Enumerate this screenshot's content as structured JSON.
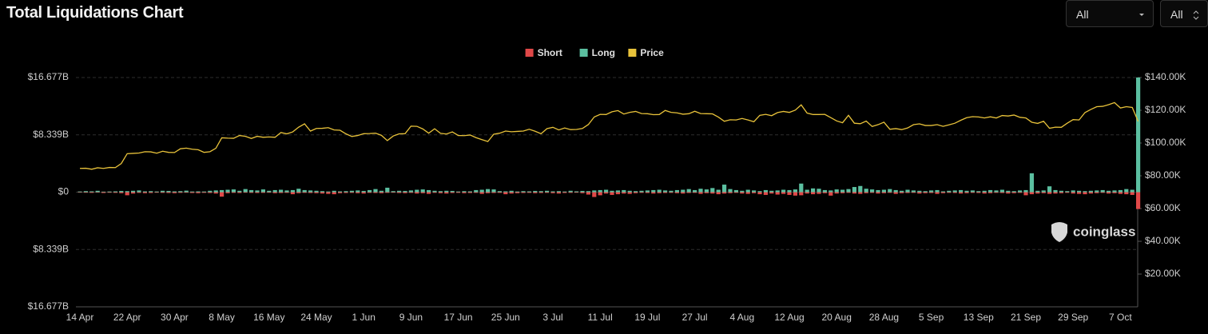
{
  "controls": [
    "All",
    "All"
  ],
  "watermark": "coinglass",
  "chart_data": {
    "type": "bar",
    "title": "Total Liquidations Chart",
    "categories": [
      "14 Apr",
      null,
      null,
      null,
      null,
      null,
      null,
      null,
      "22 Apr",
      null,
      null,
      null,
      null,
      null,
      null,
      null,
      "30 Apr",
      null,
      null,
      null,
      null,
      null,
      null,
      null,
      "8 May",
      null,
      null,
      null,
      null,
      null,
      null,
      null,
      "16 May",
      null,
      null,
      null,
      null,
      null,
      null,
      null,
      "24 May",
      null,
      null,
      null,
      null,
      null,
      null,
      null,
      "1 Jun",
      null,
      null,
      null,
      null,
      null,
      null,
      null,
      "9 Jun",
      null,
      null,
      null,
      null,
      null,
      null,
      null,
      "17 Jun",
      null,
      null,
      null,
      null,
      null,
      null,
      null,
      "25 Jun",
      null,
      null,
      null,
      null,
      null,
      null,
      null,
      "3 Jul",
      null,
      null,
      null,
      null,
      null,
      null,
      null,
      "11 Jul",
      null,
      null,
      null,
      null,
      null,
      null,
      null,
      "19 Jul",
      null,
      null,
      null,
      null,
      null,
      null,
      null,
      "27 Jul",
      null,
      null,
      null,
      null,
      null,
      null,
      null,
      "4 Aug",
      null,
      null,
      null,
      null,
      null,
      null,
      null,
      "12 Aug",
      null,
      null,
      null,
      null,
      null,
      null,
      null,
      "20 Aug",
      null,
      null,
      null,
      null,
      null,
      null,
      null,
      "28 Aug",
      null,
      null,
      null,
      null,
      null,
      null,
      null,
      "5 Sep",
      null,
      null,
      null,
      null,
      null,
      null,
      null,
      "13 Sep",
      null,
      null,
      null,
      null,
      null,
      null,
      null,
      "21 Sep",
      null,
      null,
      null,
      null,
      null,
      null,
      null,
      "29 Sep",
      null,
      null,
      null,
      null,
      null,
      null,
      null,
      "7 Oct",
      null,
      null,
      null
    ],
    "series": [
      {
        "name": "Short",
        "color": "#e04848",
        "values": [
          -0.05,
          -0.08,
          -0.1,
          -0.06,
          -0.12,
          -0.08,
          -0.1,
          -0.15,
          -0.45,
          -0.2,
          -0.1,
          -0.15,
          -0.12,
          -0.08,
          -0.1,
          -0.12,
          -0.15,
          -0.1,
          -0.08,
          -0.12,
          -0.15,
          -0.1,
          -0.12,
          -0.2,
          -0.65,
          -0.15,
          -0.1,
          -0.12,
          -0.08,
          -0.1,
          -0.12,
          -0.1,
          -0.08,
          -0.15,
          -0.12,
          -0.1,
          -0.3,
          -0.15,
          -0.1,
          -0.12,
          -0.15,
          -0.2,
          -0.25,
          -0.3,
          -0.15,
          -0.12,
          -0.1,
          -0.15,
          -0.2,
          -0.1,
          -0.12,
          -0.15,
          -0.1,
          -0.08,
          -0.12,
          -0.15,
          -0.1,
          -0.2,
          -0.15,
          -0.25,
          -0.1,
          -0.15,
          -0.2,
          -0.12,
          -0.1,
          -0.15,
          -0.12,
          -0.1,
          -0.25,
          -0.15,
          -0.12,
          -0.1,
          -0.3,
          -0.2,
          -0.15,
          -0.12,
          -0.1,
          -0.15,
          -0.12,
          -0.1,
          -0.15,
          -0.2,
          -0.12,
          -0.1,
          -0.08,
          -0.15,
          -0.35,
          -0.7,
          -0.45,
          -0.2,
          -0.4,
          -0.3,
          -0.2,
          -0.25,
          -0.15,
          -0.1,
          -0.12,
          -0.2,
          -0.15,
          -0.12,
          -0.1,
          -0.15,
          -0.2,
          -0.12,
          -0.1,
          -0.25,
          -0.15,
          -0.2,
          -0.3,
          -0.2,
          -0.15,
          -0.1,
          -0.2,
          -0.25,
          -0.15,
          -0.3,
          -0.4,
          -0.2,
          -0.35,
          -0.25,
          -0.4,
          -0.5,
          -0.45,
          -0.2,
          -0.3,
          -0.25,
          -0.15,
          -0.5,
          -0.2,
          -0.15,
          -0.1,
          -0.2,
          -0.25,
          -0.15,
          -0.1,
          -0.2,
          -0.15,
          -0.1,
          -0.25,
          -0.15,
          -0.12,
          -0.1,
          -0.2,
          -0.15,
          -0.12,
          -0.25,
          -0.15,
          -0.1,
          -0.12,
          -0.2,
          -0.15,
          -0.1,
          -0.12,
          -0.2,
          -0.15,
          -0.1,
          -0.12,
          -0.2,
          -0.15,
          -0.1,
          -0.45,
          -0.3,
          -0.2,
          -0.15,
          -0.25,
          -0.2,
          -0.15,
          -0.1,
          -0.2,
          -0.25,
          -0.3,
          -0.2,
          -0.15,
          -0.1,
          -0.2,
          -0.15,
          -0.25,
          -0.3,
          -0.4,
          -2.45
        ]
      },
      {
        "name": "Long",
        "color": "#5bbfa0",
        "values": [
          0.1,
          0.15,
          0.12,
          0.2,
          0.08,
          0.1,
          0.12,
          0.18,
          0.15,
          0.2,
          0.25,
          0.12,
          0.15,
          0.1,
          0.2,
          0.18,
          0.12,
          0.15,
          0.22,
          0.1,
          0.12,
          0.1,
          0.2,
          0.25,
          0.3,
          0.35,
          0.4,
          0.2,
          0.45,
          0.3,
          0.25,
          0.4,
          0.2,
          0.3,
          0.35,
          0.25,
          0.3,
          0.5,
          0.3,
          0.25,
          0.2,
          0.15,
          0.1,
          0.2,
          0.12,
          0.15,
          0.2,
          0.25,
          0.18,
          0.3,
          0.45,
          0.2,
          0.65,
          0.15,
          0.2,
          0.18,
          0.25,
          0.35,
          0.4,
          0.3,
          0.2,
          0.15,
          0.2,
          0.18,
          0.1,
          0.15,
          0.12,
          0.3,
          0.35,
          0.45,
          0.4,
          0.15,
          0.12,
          0.2,
          0.1,
          0.15,
          0.12,
          0.18,
          0.15,
          0.2,
          0.12,
          0.15,
          0.1,
          0.2,
          0.12,
          0.18,
          0.15,
          0.25,
          0.3,
          0.35,
          0.2,
          0.25,
          0.3,
          0.2,
          0.15,
          0.2,
          0.25,
          0.3,
          0.35,
          0.25,
          0.2,
          0.3,
          0.35,
          0.45,
          0.3,
          0.5,
          0.4,
          0.6,
          0.35,
          1.1,
          0.45,
          0.3,
          0.2,
          0.35,
          0.25,
          0.15,
          0.3,
          0.2,
          0.25,
          0.35,
          0.3,
          0.4,
          1.25,
          0.35,
          0.55,
          0.5,
          0.3,
          0.25,
          0.4,
          0.35,
          0.45,
          0.75,
          0.9,
          0.5,
          0.4,
          0.3,
          0.35,
          0.45,
          0.3,
          0.2,
          0.35,
          0.25,
          0.2,
          0.15,
          0.25,
          0.3,
          0.12,
          0.2,
          0.25,
          0.3,
          0.2,
          0.25,
          0.15,
          0.2,
          0.3,
          0.25,
          0.35,
          0.2,
          0.15,
          0.25,
          0.3,
          2.75,
          0.2,
          0.25,
          0.85,
          0.3,
          0.2,
          0.15,
          0.25,
          0.2,
          0.15,
          0.2,
          0.25,
          0.3,
          0.2,
          0.25,
          0.3,
          0.45,
          0.35,
          16.677
        ]
      },
      {
        "name": "Price",
        "color": "#e8c23a",
        "axis": "y2",
        "values": [
          84.5,
          84.6,
          84,
          84.9,
          84.5,
          85.1,
          85,
          87.5,
          93.5,
          93.7,
          93.9,
          94.7,
          94.6,
          93.8,
          95,
          94.3,
          94.2,
          96.5,
          96.9,
          96.2,
          95.9,
          94.3,
          94.7,
          96.8,
          103.2,
          103,
          102.9,
          104.6,
          104.1,
          102.8,
          104.1,
          103.5,
          103.7,
          103.5,
          106.4,
          105.6,
          106.8,
          109.7,
          111.7,
          107.3,
          108.9,
          109,
          109.4,
          108,
          107.8,
          105.6,
          104,
          104.6,
          105.7,
          105.8,
          106,
          104.7,
          101.5,
          104.3,
          105.6,
          105.7,
          110.3,
          110.2,
          108.6,
          106,
          108.7,
          105.9,
          105.5,
          106.8,
          104.6,
          104.5,
          104.9,
          103.3,
          102.1,
          100.9,
          105.4,
          106,
          107.3,
          106.9,
          107.1,
          107.3,
          108.4,
          107.2,
          105.7,
          108.8,
          109.6,
          108,
          109.2,
          108.2,
          108.3,
          108.9,
          111.3,
          115.9,
          117.5,
          117.4,
          119.1,
          119.8,
          117.7,
          118.7,
          119.3,
          118,
          117.9,
          117.3,
          117.4,
          119.9,
          118.7,
          118.4,
          117.6,
          117.9,
          119.4,
          118,
          117.9,
          117.8,
          115.8,
          113.3,
          114.2,
          114.1,
          115,
          114.1,
          113,
          116.9,
          117.5,
          116.7,
          118.6,
          119.3,
          118.7,
          120.1,
          123.3,
          118.3,
          117.4,
          117.4,
          117.5,
          115.5,
          113.5,
          112.4,
          116.9,
          112.1,
          111.8,
          113.4,
          110.1,
          111.2,
          112.7,
          108.4,
          108.8,
          108.2,
          109.2,
          111.2,
          111.7,
          110.7,
          110.7,
          111.2,
          110.2,
          111.1,
          112.1,
          113.9,
          115.5,
          116.1,
          115.9,
          115.3,
          116,
          115.3,
          116.8,
          116.5,
          117.1,
          115.7,
          115.3,
          112.7,
          112,
          113.3,
          109,
          109.7,
          109.6,
          112.1,
          114.3,
          114.1,
          118.6,
          120.5,
          122.2,
          122.4,
          123.4,
          124.7,
          121.4,
          122.2,
          121.7,
          113.2
        ]
      }
    ],
    "ylim": [
      -16.677,
      16.677
    ],
    "yticks": [
      {
        "value": 16.677,
        "label": "$16.677B"
      },
      {
        "value": 8.339,
        "label": "$8.339B"
      },
      {
        "value": 0,
        "label": "$0"
      },
      {
        "value": -8.339,
        "label": "$8.339B"
      },
      {
        "value": -16.677,
        "label": "$16.677B"
      }
    ],
    "y2lim": [
      0,
      140
    ],
    "y2ticks": [
      {
        "value": 140,
        "label": "$140.00K"
      },
      {
        "value": 120,
        "label": "$120.00K"
      },
      {
        "value": 100,
        "label": "$100.00K"
      },
      {
        "value": 80,
        "label": "$80.00K"
      },
      {
        "value": 60,
        "label": "$60.00K"
      },
      {
        "value": 40,
        "label": "$40.00K"
      },
      {
        "value": 20,
        "label": "$20.00K"
      }
    ],
    "grid": true,
    "legend": "top"
  }
}
